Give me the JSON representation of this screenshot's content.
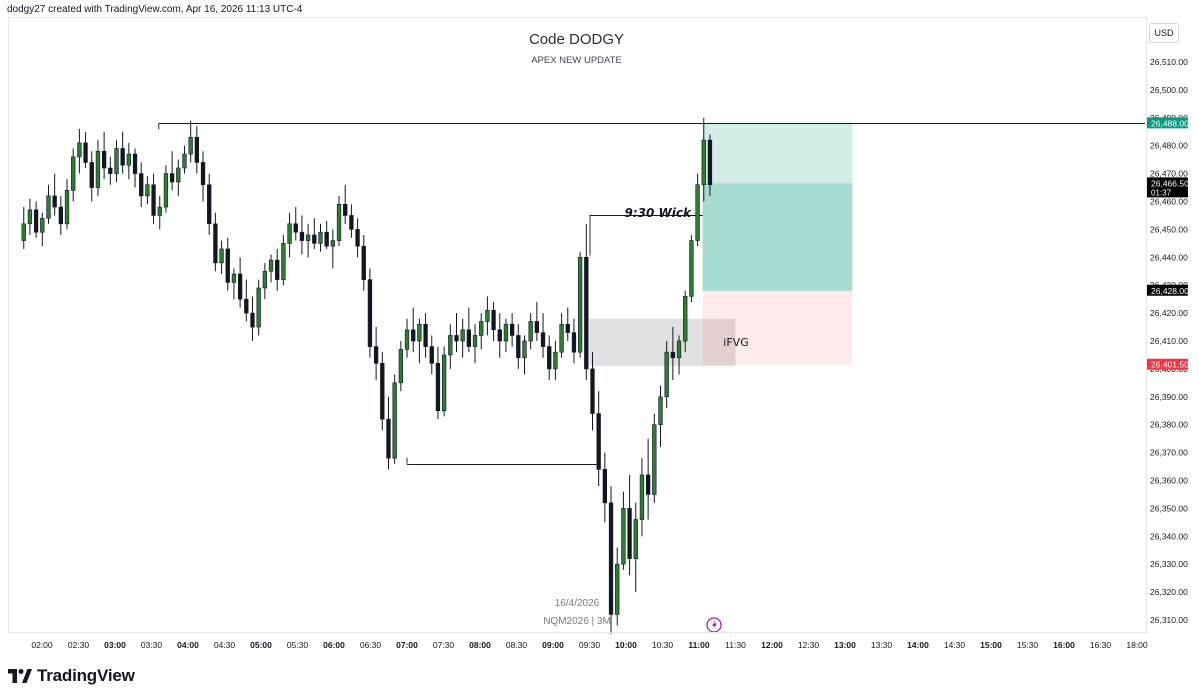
{
  "header": {
    "info": "dodgy27 created with TradingView.com, Apr 16, 2026 11:13 UTC-4",
    "currency_button": "USD"
  },
  "branding": {
    "logo_text": "TradingView",
    "logo_icon": "tradingview-logo-icon"
  },
  "chart_data": {
    "type": "candlestick",
    "title": "Code DODGY",
    "subtitle": "APEX NEW UPDATE",
    "symbol_date": "16/4/2026",
    "symbol_label": "NQM2026 | 3M",
    "x_ticks": [
      "02:00",
      "02:30",
      "03:00",
      "03:30",
      "04:00",
      "04:30",
      "05:00",
      "05:30",
      "06:00",
      "06:30",
      "07:00",
      "07:30",
      "08:00",
      "08:30",
      "09:00",
      "09:30",
      "10:00",
      "10:30",
      "11:00",
      "11:30",
      "12:00",
      "12:30",
      "13:00",
      "13:30",
      "14:00",
      "14:30",
      "15:00",
      "15:30",
      "16:00",
      "16:30",
      "18:00"
    ],
    "x_ticks_bold": [
      "03:00",
      "04:00",
      "05:00",
      "06:00",
      "07:00",
      "08:00",
      "09:00",
      "10:00",
      "11:00",
      "12:00",
      "13:00",
      "14:00",
      "15:00",
      "16:00"
    ],
    "y_ticks": [
      "26,510.00",
      "26,500.00",
      "26,490.00",
      "26,480.00",
      "26,470.00",
      "26,460.00",
      "26,450.00",
      "26,440.00",
      "26,430.00",
      "26,420.00",
      "26,410.00",
      "26,400.00",
      "26,390.00",
      "26,380.00",
      "26,370.00",
      "26,360.00",
      "26,350.00",
      "26,340.00",
      "26,330.00",
      "26,320.00",
      "26,310.00"
    ],
    "ylim": [
      26306,
      26518
    ],
    "time_range": [
      "01:45",
      "18:00"
    ],
    "price_labels": [
      {
        "text": "26,488.00",
        "value": 26488.0,
        "color": "#089981"
      },
      {
        "text": "26,466.50",
        "sub": "01:37",
        "value": 26466.5,
        "color": "#000000"
      },
      {
        "text": "26,428.00",
        "value": 26428.0,
        "color": "#000000"
      },
      {
        "text": "26,401.50",
        "value": 26401.5,
        "color": "#f23645"
      }
    ],
    "annotations": [
      {
        "text": "9:30 Wick",
        "time": "09:30",
        "price": 26457
      },
      {
        "text": "iFVG",
        "time": "11:25",
        "price": 26410
      }
    ],
    "levels": [
      {
        "name": "high-line",
        "price": 26488,
        "from": "03:36",
        "to": "18:00"
      },
      {
        "name": "wick-line",
        "price": 26455,
        "from": "09:30",
        "to": "11:03"
      },
      {
        "name": "low-line",
        "price": 26366,
        "from": "07:00",
        "to": "09:36"
      }
    ],
    "ifvg_zone": {
      "from": "09:30",
      "to": "11:30",
      "high": 26418,
      "low": 26401
    },
    "position": {
      "from": "11:03",
      "to": "13:06",
      "target": 26488,
      "entry": 26428,
      "stop": 26401.5,
      "current": 26466.5
    },
    "candles": [
      [
        26446,
        26458,
        26443,
        26452
      ],
      [
        26452,
        26461,
        26448,
        26457
      ],
      [
        26457,
        26460,
        26447,
        26449
      ],
      [
        26449,
        26456,
        26444,
        26454
      ],
      [
        26454,
        26466,
        26452,
        26462
      ],
      [
        26462,
        26470,
        26455,
        26458
      ],
      [
        26458,
        26462,
        26448,
        26452
      ],
      [
        26452,
        26468,
        26450,
        26464
      ],
      [
        26464,
        26479,
        26460,
        26476
      ],
      [
        26476,
        26486,
        26470,
        26481
      ],
      [
        26481,
        26485,
        26472,
        26474
      ],
      [
        26474,
        26478,
        26460,
        26465
      ],
      [
        26465,
        26482,
        26462,
        26478
      ],
      [
        26478,
        26485,
        26468,
        26472
      ],
      [
        26472,
        26476,
        26466,
        26470
      ],
      [
        26470,
        26482,
        26467,
        26479
      ],
      [
        26479,
        26485,
        26470,
        26473
      ],
      [
        26473,
        26481,
        26468,
        26477
      ],
      [
        26477,
        26479,
        26465,
        26470
      ],
      [
        26470,
        26474,
        26458,
        26462
      ],
      [
        26462,
        26469,
        26459,
        26466
      ],
      [
        26466,
        26470,
        26452,
        26455
      ],
      [
        26455,
        26462,
        26450,
        26458
      ],
      [
        26458,
        26473,
        26456,
        26470
      ],
      [
        26470,
        26478,
        26464,
        26467
      ],
      [
        26467,
        26475,
        26462,
        26472
      ],
      [
        26472,
        26480,
        26470,
        26477
      ],
      [
        26477,
        26489,
        26474,
        26483
      ],
      [
        26483,
        26487,
        26470,
        26474
      ],
      [
        26474,
        26478,
        26460,
        26466
      ],
      [
        26466,
        26470,
        26448,
        26452
      ],
      [
        26452,
        26456,
        26435,
        26438
      ],
      [
        26438,
        26446,
        26434,
        26443
      ],
      [
        26443,
        26447,
        26428,
        26431
      ],
      [
        26431,
        26436,
        26425,
        26434
      ],
      [
        26434,
        26440,
        26422,
        26425
      ],
      [
        26425,
        26432,
        26417,
        26420
      ],
      [
        26420,
        26426,
        26410,
        26415
      ],
      [
        26415,
        26432,
        26412,
        26429
      ],
      [
        26429,
        26438,
        26425,
        26435
      ],
      [
        26435,
        26441,
        26431,
        26439
      ],
      [
        26439,
        26443,
        26428,
        26432
      ],
      [
        26432,
        26448,
        26430,
        26445
      ],
      [
        26445,
        26456,
        26440,
        26452
      ],
      [
        26452,
        26458,
        26446,
        26449
      ],
      [
        26449,
        26455,
        26441,
        26446
      ],
      [
        26446,
        26452,
        26440,
        26448
      ],
      [
        26448,
        26454,
        26443,
        26445
      ],
      [
        26445,
        26452,
        26442,
        26449
      ],
      [
        26449,
        26453,
        26443,
        26444
      ],
      [
        26444,
        26450,
        26436,
        26446
      ],
      [
        26446,
        26462,
        26444,
        26459
      ],
      [
        26459,
        26466,
        26452,
        26455
      ],
      [
        26455,
        26459,
        26447,
        26450
      ],
      [
        26450,
        26454,
        26440,
        26444
      ],
      [
        26444,
        26448,
        26428,
        26432
      ],
      [
        26432,
        26436,
        26404,
        26408
      ],
      [
        26408,
        26415,
        26396,
        26402
      ],
      [
        26402,
        26406,
        26378,
        26382
      ],
      [
        26382,
        26390,
        26364,
        26368
      ],
      [
        26368,
        26398,
        26366,
        26395
      ],
      [
        26395,
        26410,
        26392,
        26407
      ],
      [
        26407,
        26418,
        26404,
        26414
      ],
      [
        26414,
        26422,
        26406,
        26410
      ],
      [
        26410,
        26418,
        26402,
        26416
      ],
      [
        26416,
        26420,
        26404,
        26408
      ],
      [
        26408,
        26412,
        26398,
        26402
      ],
      [
        26402,
        26408,
        26382,
        26385
      ],
      [
        26385,
        26408,
        26383,
        26405
      ],
      [
        26405,
        26416,
        26400,
        26412
      ],
      [
        26412,
        26420,
        26406,
        26410
      ],
      [
        26410,
        26418,
        26404,
        26414
      ],
      [
        26414,
        26422,
        26406,
        26408
      ],
      [
        26408,
        26416,
        26402,
        26412
      ],
      [
        26412,
        26420,
        26407,
        26417
      ],
      [
        26417,
        26426,
        26412,
        26421
      ],
      [
        26421,
        26424,
        26410,
        26414
      ],
      [
        26414,
        26420,
        26404,
        26410
      ],
      [
        26410,
        26418,
        26406,
        26416
      ],
      [
        26416,
        26420,
        26408,
        26412
      ],
      [
        26412,
        26416,
        26400,
        26404
      ],
      [
        26404,
        26412,
        26398,
        26410
      ],
      [
        26410,
        26420,
        26407,
        26417
      ],
      [
        26417,
        26424,
        26410,
        26413
      ],
      [
        26413,
        26420,
        26404,
        26408
      ],
      [
        26408,
        26412,
        26396,
        26400
      ],
      [
        26400,
        26410,
        26396,
        26406
      ],
      [
        26406,
        26420,
        26404,
        26416
      ],
      [
        26416,
        26422,
        26410,
        26413
      ],
      [
        26413,
        26418,
        26402,
        26406
      ],
      [
        26406,
        26442,
        26404,
        26440
      ],
      [
        26440,
        26452,
        26396,
        26400
      ],
      [
        26400,
        26406,
        26378,
        26384
      ],
      [
        26384,
        26392,
        26358,
        26364
      ],
      [
        26364,
        26370,
        26345,
        26352
      ],
      [
        26352,
        26358,
        26305,
        26312
      ],
      [
        26312,
        26336,
        26308,
        26330
      ],
      [
        26330,
        26356,
        26328,
        26350
      ],
      [
        26350,
        26362,
        26326,
        26332
      ],
      [
        26332,
        26352,
        26320,
        26346
      ],
      [
        26346,
        26368,
        26340,
        26362
      ],
      [
        26362,
        26375,
        26346,
        26355
      ],
      [
        26355,
        26384,
        26352,
        26380
      ],
      [
        26380,
        26394,
        26372,
        26390
      ],
      [
        26390,
        26410,
        26386,
        26406
      ],
      [
        26406,
        26415,
        26396,
        26404
      ],
      [
        26404,
        26412,
        26398,
        26410
      ],
      [
        26410,
        26428,
        26406,
        26426
      ],
      [
        26426,
        26448,
        26424,
        26446
      ],
      [
        26446,
        26470,
        26444,
        26466
      ],
      [
        26466,
        26490,
        26460,
        26482
      ],
      [
        26482,
        26484,
        26462,
        26466
      ]
    ]
  }
}
